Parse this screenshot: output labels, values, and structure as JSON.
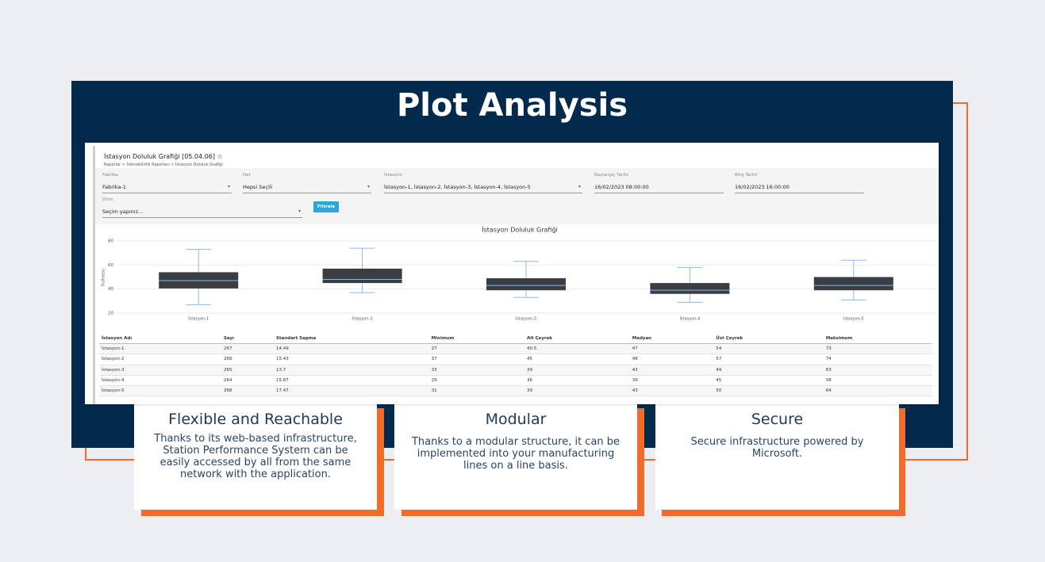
{
  "header": {
    "title": "Plot Analysis"
  },
  "app": {
    "title": "İstasyon Doluluk Grafiği [05.04.06] ☆",
    "breadcrumb": "Raporlar > İzlenebilirlik Raporları > İstasyon Doluluk Grafiği",
    "filters": [
      {
        "label": "Fabrika",
        "value": "Fabrika-1"
      },
      {
        "label": "Hat",
        "value": "Hepsi Seçili"
      },
      {
        "label": "İstasyon",
        "value": "İstasyon-1, İstasyon-2, İstasyon-3, İstasyon-4, İstasyon-5"
      },
      {
        "label": "Başlangıç Tarihi",
        "value": "16/02/2023 08:00:00"
      },
      {
        "label": "Bitiş Tarihi",
        "value": "16/02/2023 16:00:00"
      },
      {
        "label": "Ürün",
        "value": "Seçim yapınız..."
      }
    ],
    "button": "Filtrele"
  },
  "chart_data": {
    "type": "boxplot",
    "title": "İstasyon Doluluk Grafiği",
    "y_label": "Fullness",
    "categories": [
      "İstasyon-1",
      "İstasyon-2",
      "İstasyon-3",
      "İstasyon-4",
      "İstasyon-5"
    ],
    "min": [
      27,
      37,
      33,
      29,
      31
    ],
    "q1": [
      40.5,
      45,
      39,
      36,
      39
    ],
    "median": [
      47,
      48,
      43,
      39,
      43
    ],
    "q3": [
      54,
      57,
      49,
      45,
      50
    ],
    "max": [
      73,
      74,
      63,
      58,
      64
    ],
    "box_color": "#3a3d42",
    "whisker_color": "#8db8e3",
    "ylim": [
      20,
      80
    ],
    "yticks": [
      20,
      40,
      60,
      80
    ],
    "grid": true
  },
  "table": {
    "columns": [
      "İstasyon Adı",
      "Sayı",
      "Standart Sapma",
      "Minimum",
      "Alt Çeyrek",
      "Medyan",
      "Üst Çeyrek",
      "Maksimum"
    ],
    "rows": [
      [
        "İstasyon-1",
        "267",
        "14.49",
        "27",
        "40.5",
        "47",
        "54",
        "73"
      ],
      [
        "İstasyon-2",
        "266",
        "15.43",
        "37",
        "45",
        "48",
        "57",
        "74"
      ],
      [
        "İstasyon-3",
        "265",
        "13.7",
        "33",
        "39",
        "43",
        "49",
        "63"
      ],
      [
        "İstasyon-4",
        "264",
        "15.87",
        "29",
        "36",
        "39",
        "45",
        "58"
      ],
      [
        "İstasyon-5",
        "268",
        "17.47",
        "31",
        "39",
        "43",
        "50",
        "64"
      ]
    ]
  },
  "features": [
    {
      "title": "Flexible and Reachable",
      "text": "Thanks to its web-based infrastructure, Station Performance System can be easily accessed by all from the same network with the application."
    },
    {
      "title": "Modular",
      "text": "Thanks to a modular structure, it can be implemented into your manufacturing lines on a line basis."
    },
    {
      "title": "Secure",
      "text": "Secure infrastructure powered by Microsoft."
    }
  ]
}
